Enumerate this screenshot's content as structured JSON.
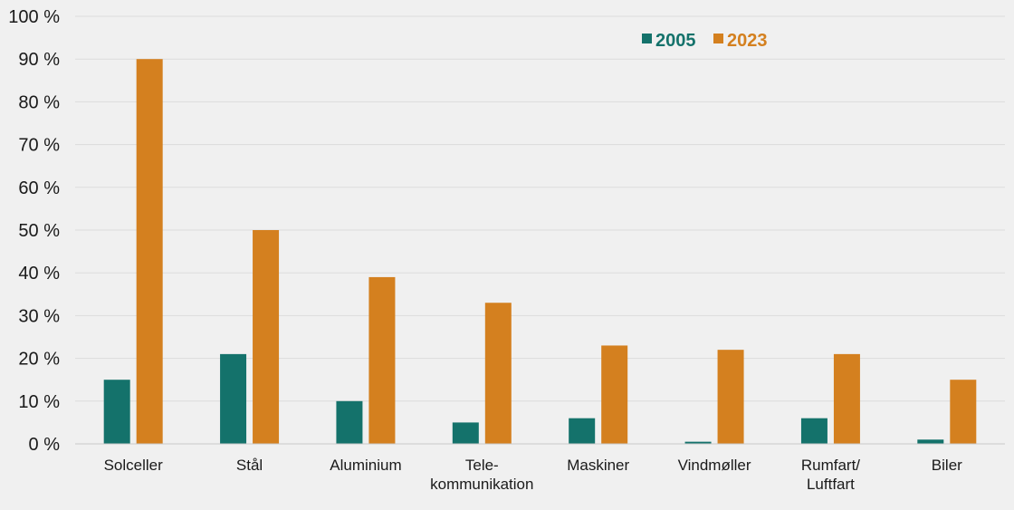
{
  "chart_data": {
    "type": "bar",
    "title": "",
    "xlabel": "",
    "ylabel": "",
    "ylim": [
      0,
      100
    ],
    "ytick_step": 10,
    "ytick_suffix": " %",
    "grid": true,
    "legend_position": "top-right",
    "categories": [
      [
        "Solceller"
      ],
      [
        "Stål"
      ],
      [
        "Aluminium"
      ],
      [
        "Tele-",
        "kommunikation"
      ],
      [
        "Maskiner"
      ],
      [
        "Vindmøller"
      ],
      [
        "Rumfart/",
        "Luftfart"
      ],
      [
        "Biler"
      ]
    ],
    "series": [
      {
        "name": "2005",
        "color": "#14726b",
        "values": [
          15,
          21,
          10,
          5,
          6,
          0.5,
          6,
          1
        ]
      },
      {
        "name": "2023",
        "color": "#d4801f",
        "values": [
          90,
          50,
          39,
          33,
          23,
          22,
          21,
          15
        ]
      }
    ]
  }
}
